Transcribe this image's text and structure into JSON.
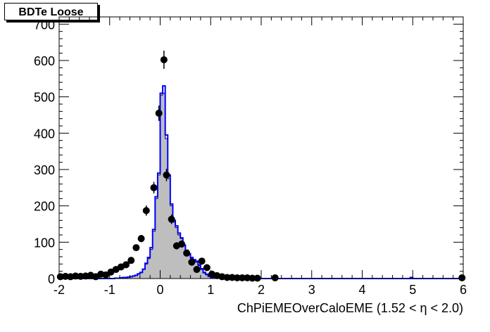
{
  "chart_data": {
    "type": "histogram",
    "title": "BDTe Loose",
    "xlabel": "ChPiEMEOverCaloEME (1.52 <   η < 2.0)",
    "ylabel": "",
    "xlim": [
      -2,
      6
    ],
    "ylim": [
      0,
      720
    ],
    "x_ticks": [
      "-2",
      "-1",
      "0",
      "1",
      "2",
      "3",
      "4",
      "5",
      "6"
    ],
    "y_ticks": [
      "0",
      "100",
      "200",
      "300",
      "400",
      "500",
      "600",
      "700"
    ],
    "bin_width": 0.05,
    "series": [
      {
        "style": "filled-histogram",
        "fill": "#bebebe",
        "edges": [
          -2.0,
          -1.95,
          -1.9,
          -1.85,
          -1.8,
          -1.75,
          -1.7,
          -1.65,
          -1.6,
          -1.55,
          -1.5,
          -1.45,
          -1.4,
          -1.35,
          -1.3,
          -1.25,
          -1.2,
          -1.15,
          -1.1,
          -1.05,
          -1.0,
          -0.95,
          -0.9,
          -0.85,
          -0.8,
          -0.75,
          -0.7,
          -0.65,
          -0.6,
          -0.55,
          -0.5,
          -0.45,
          -0.4,
          -0.35,
          -0.3,
          -0.25,
          -0.2,
          -0.15,
          -0.1,
          -0.05,
          0.0,
          0.05,
          0.1,
          0.15,
          0.2,
          0.25,
          0.3,
          0.35,
          0.4,
          0.45,
          0.5,
          0.55,
          0.6,
          0.65,
          0.7,
          0.75,
          0.8,
          0.85,
          0.9,
          0.95,
          1.0,
          1.05,
          1.1,
          1.15,
          1.2,
          1.25,
          1.3
        ],
        "values": [
          0,
          0,
          0,
          0,
          0,
          0,
          0,
          0,
          0,
          0,
          0,
          0,
          0,
          0,
          0,
          0,
          0,
          0,
          0,
          0,
          0,
          0,
          1,
          1,
          2,
          2,
          3,
          4,
          5,
          7,
          9,
          12,
          16,
          25,
          40,
          55,
          80,
          130,
          220,
          285,
          505,
          510,
          385,
          275,
          200,
          155,
          140,
          120,
          110,
          90,
          75,
          65,
          55,
          50,
          45,
          35,
          25,
          15,
          10,
          5,
          3,
          2,
          1,
          1,
          0,
          0
        ]
      },
      {
        "style": "step-line",
        "color": "#0000ff",
        "edges": [
          -2.0,
          -1.95,
          -1.9,
          -1.85,
          -1.8,
          -1.75,
          -1.7,
          -1.65,
          -1.6,
          -1.55,
          -1.5,
          -1.45,
          -1.4,
          -1.35,
          -1.3,
          -1.25,
          -1.2,
          -1.15,
          -1.1,
          -1.05,
          -1.0,
          -0.95,
          -0.9,
          -0.85,
          -0.8,
          -0.75,
          -0.7,
          -0.65,
          -0.6,
          -0.55,
          -0.5,
          -0.45,
          -0.4,
          -0.35,
          -0.3,
          -0.25,
          -0.2,
          -0.15,
          -0.1,
          -0.05,
          0.0,
          0.05,
          0.1,
          0.15,
          0.2,
          0.25,
          0.3,
          0.35,
          0.4,
          0.45,
          0.5,
          0.55,
          0.6,
          0.65,
          0.7,
          0.75,
          0.8,
          0.85,
          0.9,
          0.95,
          1.0,
          1.05,
          1.1,
          1.15,
          1.2,
          1.25,
          1.3
        ],
        "values": [
          0,
          0,
          0,
          0,
          0,
          0,
          0,
          0,
          0,
          0,
          0,
          0,
          0,
          0,
          0,
          0,
          0,
          0,
          0,
          0,
          0,
          0,
          1,
          1,
          2,
          3,
          3,
          4,
          5,
          7,
          9,
          13,
          17,
          26,
          42,
          58,
          85,
          135,
          225,
          290,
          510,
          530,
          395,
          285,
          205,
          160,
          145,
          125,
          112,
          92,
          78,
          68,
          58,
          52,
          48,
          38,
          27,
          17,
          12,
          6,
          3,
          2,
          1,
          1,
          0,
          0
        ],
        "extra_marks": [
          [
            4.95,
            5.0,
            3
          ]
        ]
      },
      {
        "style": "points-with-errors",
        "color": "#000000",
        "points": [
          {
            "x": -1.975,
            "y": 5,
            "err": 2
          },
          {
            "x": -1.875,
            "y": 6,
            "err": 2
          },
          {
            "x": -1.775,
            "y": 5,
            "err": 2
          },
          {
            "x": -1.675,
            "y": 7,
            "err": 3
          },
          {
            "x": -1.575,
            "y": 6,
            "err": 2
          },
          {
            "x": -1.475,
            "y": 7,
            "err": 3
          },
          {
            "x": -1.375,
            "y": 9,
            "err": 3
          },
          {
            "x": -1.275,
            "y": 5,
            "err": 2
          },
          {
            "x": -1.175,
            "y": 12,
            "err": 3
          },
          {
            "x": -1.075,
            "y": 10,
            "err": 3
          },
          {
            "x": -0.975,
            "y": 18,
            "err": 4
          },
          {
            "x": -0.875,
            "y": 25,
            "err": 5
          },
          {
            "x": -0.775,
            "y": 32,
            "err": 6
          },
          {
            "x": -0.675,
            "y": 38,
            "err": 6
          },
          {
            "x": -0.575,
            "y": 50,
            "err": 7
          },
          {
            "x": -0.475,
            "y": 85,
            "err": 9
          },
          {
            "x": -0.375,
            "y": 110,
            "err": 10
          },
          {
            "x": -0.275,
            "y": 187,
            "err": 14
          },
          {
            "x": -0.125,
            "y": 250,
            "err": 16
          },
          {
            "x": -0.025,
            "y": 455,
            "err": 21
          },
          {
            "x": 0.075,
            "y": 602,
            "err": 25
          },
          {
            "x": 0.125,
            "y": 285,
            "err": 17
          },
          {
            "x": 0.225,
            "y": 163,
            "err": 13
          },
          {
            "x": 0.325,
            "y": 90,
            "err": 10
          },
          {
            "x": 0.425,
            "y": 95,
            "err": 10
          },
          {
            "x": 0.525,
            "y": 70,
            "err": 8
          },
          {
            "x": 0.625,
            "y": 45,
            "err": 7
          },
          {
            "x": 0.725,
            "y": 25,
            "err": 5
          },
          {
            "x": 0.825,
            "y": 48,
            "err": 7
          },
          {
            "x": 0.925,
            "y": 30,
            "err": 6
          },
          {
            "x": 1.025,
            "y": 12,
            "err": 3
          },
          {
            "x": 1.125,
            "y": 8,
            "err": 3
          },
          {
            "x": 1.225,
            "y": 5,
            "err": 2
          },
          {
            "x": 1.325,
            "y": 3,
            "err": 2
          },
          {
            "x": 1.425,
            "y": 3,
            "err": 2
          },
          {
            "x": 1.525,
            "y": 2,
            "err": 1
          },
          {
            "x": 1.625,
            "y": 2,
            "err": 1
          },
          {
            "x": 1.725,
            "y": 2,
            "err": 1
          },
          {
            "x": 1.825,
            "y": 1,
            "err": 1
          },
          {
            "x": 1.925,
            "y": 1,
            "err": 1
          },
          {
            "x": 2.275,
            "y": 2,
            "err": 1
          },
          {
            "x": 5.975,
            "y": 2,
            "err": 1
          }
        ]
      }
    ]
  }
}
